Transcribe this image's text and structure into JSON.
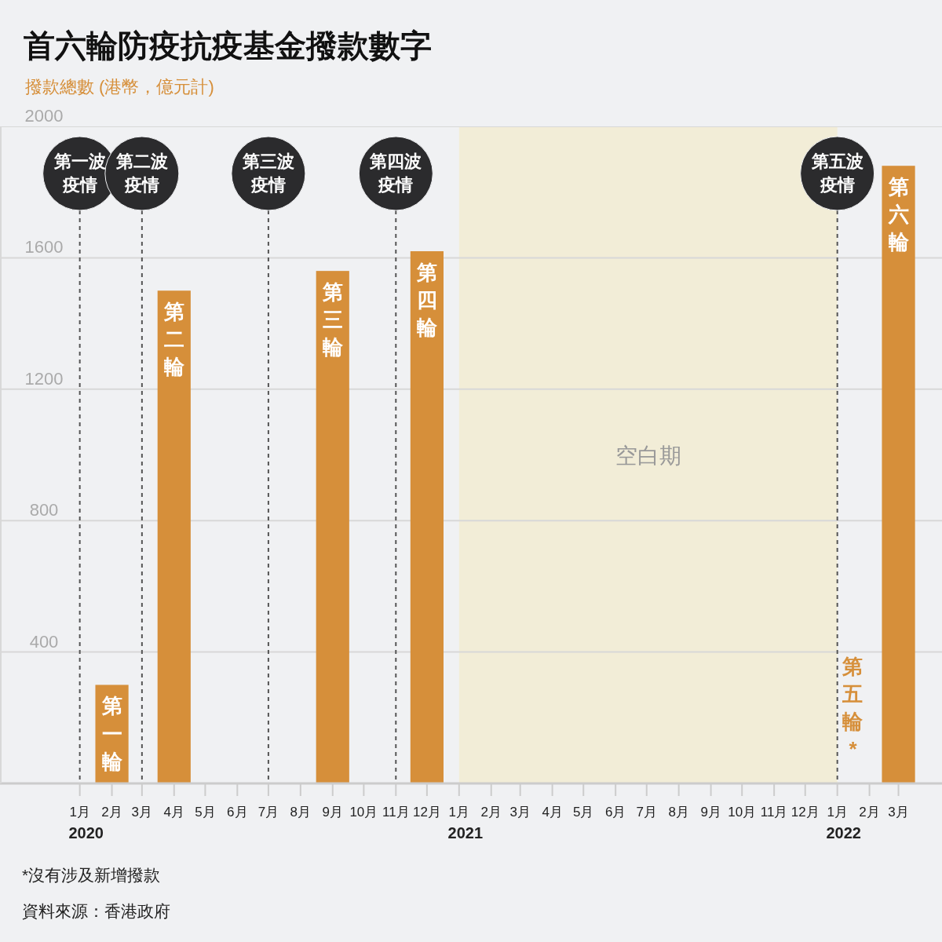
{
  "chart_data": {
    "type": "bar",
    "title": "首六輪防疫抗疫基金撥款數字",
    "ylabel": "撥款總數 (港幣，億元計)",
    "x": [
      "2020-02",
      "2020-04",
      "2020-09",
      "2020-12",
      "2022-01-16",
      "2022-03"
    ],
    "series": [
      {
        "color": "#d68f3a",
        "values": [
          300,
          1500,
          1560,
          1620,
          0,
          1880
        ],
        "value_labels": [
          "第一輪",
          "第二輪",
          "第三輪",
          "第四輪",
          "第五輪*",
          "第六輪"
        ]
      }
    ],
    "xlim": [
      "2019-10-16",
      "2022-04-12"
    ],
    "xticks": [
      {
        "value": "2020-01",
        "label": "1月\n2020"
      },
      {
        "value": "2020-02",
        "label": "2月"
      },
      {
        "value": "2020-03",
        "label": "3月"
      },
      {
        "value": "2020-04",
        "label": "4月"
      },
      {
        "value": "2020-05",
        "label": "5月"
      },
      {
        "value": "2020-06",
        "label": "6月"
      },
      {
        "value": "2020-07",
        "label": "7月"
      },
      {
        "value": "2020-08",
        "label": "8月"
      },
      {
        "value": "2020-09",
        "label": "9月"
      },
      {
        "value": "2020-10",
        "label": "10月"
      },
      {
        "value": "2020-11",
        "label": "11月"
      },
      {
        "value": "2020-12",
        "label": "12月"
      },
      {
        "value": "2021-01",
        "label": "1月\n2021"
      },
      {
        "value": "2021-02",
        "label": "2月"
      },
      {
        "value": "2021-03",
        "label": "3月"
      },
      {
        "value": "2021-04",
        "label": "4月"
      },
      {
        "value": "2021-05",
        "label": "5月"
      },
      {
        "value": "2021-06",
        "label": "6月"
      },
      {
        "value": "2021-07",
        "label": "7月"
      },
      {
        "value": "2021-08",
        "label": "8月"
      },
      {
        "value": "2021-09",
        "label": "9月"
      },
      {
        "value": "2021-10",
        "label": "10月"
      },
      {
        "value": "2021-11",
        "label": "11月"
      },
      {
        "value": "2021-12",
        "label": "12月"
      },
      {
        "value": "2022-01",
        "label": "1月\n2022"
      },
      {
        "value": "2022-02",
        "label": "2月"
      },
      {
        "value": "2022-03",
        "label": "3月"
      }
    ],
    "ylim": [
      0,
      2000
    ],
    "yticks": [
      {
        "value": 0,
        "label": null
      },
      400,
      800,
      1200,
      1600,
      2000
    ],
    "grid": "y",
    "ref_lines": [
      {
        "axis": "x",
        "value": "2020-01",
        "label": "第一波疫情",
        "line_style": "dashed"
      },
      {
        "axis": "x",
        "value": "2020-03",
        "label": "第二波疫情",
        "line_style": "dashed"
      },
      {
        "axis": "x",
        "value": "2020-07",
        "label": "第三波疫情",
        "line_style": "dashed"
      },
      {
        "axis": "x",
        "value": "2020-11",
        "label": "第四波疫情",
        "line_style": "dashed"
      },
      {
        "axis": "x",
        "value": "2022-01",
        "label": "第五波疫情",
        "line_style": "dashed"
      }
    ],
    "bands": [
      {
        "axis": "x",
        "from": "2021-01",
        "to": "2022-01",
        "label": "空白期",
        "color": "#f2edd7"
      }
    ],
    "annotations": [
      "*沒有涉及新增撥款",
      "資料來源：香港政府"
    ]
  }
}
